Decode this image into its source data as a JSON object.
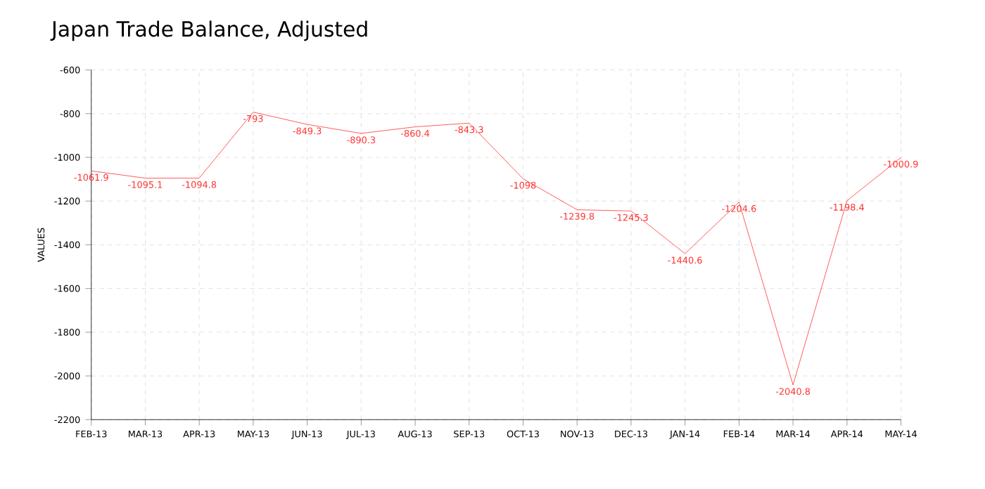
{
  "chart_data": {
    "type": "line",
    "title": "Japan Trade Balance, Adjusted",
    "ylabel": "VALUES",
    "categories": [
      "FEB-13",
      "MAR-13",
      "APR-13",
      "MAY-13",
      "JUN-13",
      "JUL-13",
      "AUG-13",
      "SEP-13",
      "OCT-13",
      "NOV-13",
      "DEC-13",
      "JAN-14",
      "FEB-14",
      "MAR-14",
      "APR-14",
      "MAY-14"
    ],
    "values": [
      -1061.9,
      -1095.1,
      -1094.8,
      -793,
      -849.3,
      -890.3,
      -860.4,
      -843.3,
      -1098,
      -1239.8,
      -1245.3,
      -1440.6,
      -1204.6,
      -2040.8,
      -1198.4,
      -1000.9
    ],
    "value_labels": [
      "-1061.9",
      "-1095.1",
      "-1094.8",
      "-793",
      "-849.3",
      "-890.3",
      "-860.4",
      "-843.3",
      "-1098",
      "-1239.8",
      "-1245.3",
      "-1440.6",
      "-1204.6",
      "-2040.8",
      "-1198.4",
      "-1000.9"
    ],
    "color": "#ff3333",
    "ylim": [
      -2200,
      -600
    ],
    "yticks": [
      -2200,
      -2000,
      -1800,
      -1600,
      -1400,
      -1200,
      -1000,
      -800,
      -600
    ],
    "grid": true,
    "marker": "none",
    "line_style": "solid"
  }
}
